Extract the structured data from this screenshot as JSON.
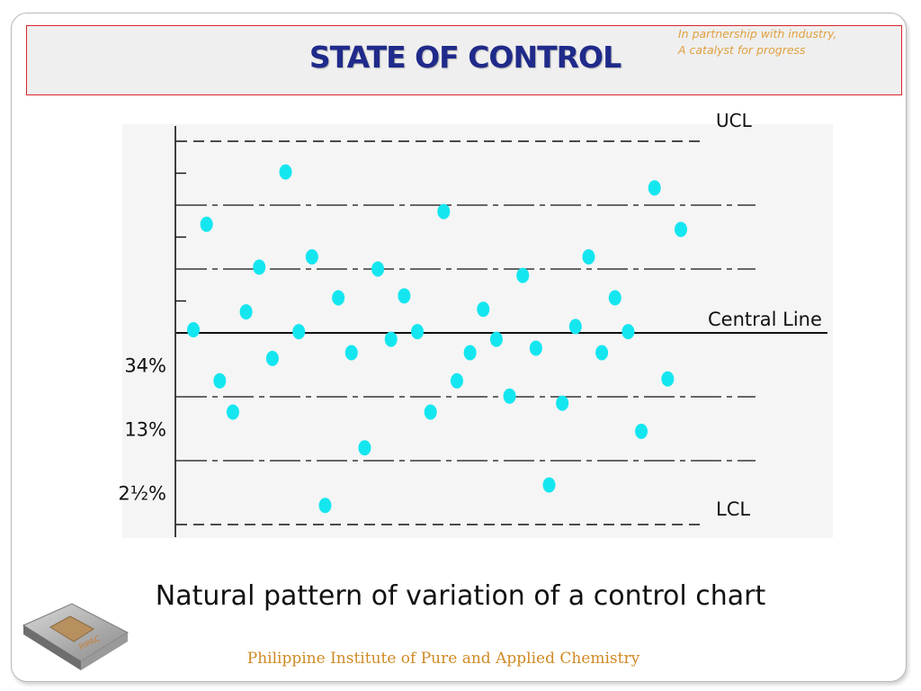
{
  "header": {
    "title": "STATE OF CONTROL",
    "tagline_line1": "In partnership with industry,",
    "tagline_line2": "A catalyst for progress"
  },
  "caption": "Natural pattern of variation of a control chart",
  "footer": "Philippine Institute of Pure and Applied Chemistry",
  "colors": {
    "point": "#14e6f0",
    "axis": "#111111",
    "title": "#1f2a8a",
    "footer": "#d08a24",
    "tagline": "#e0a040",
    "border": "#d9262b"
  },
  "logo": {
    "icon": "institute-logo-icon",
    "text": "PIPAC"
  },
  "chart_data": {
    "type": "scatter",
    "ylim": [
      -3,
      3
    ],
    "xlim": [
      0,
      50
    ],
    "grid": false,
    "center_label": "Central Line",
    "ucl_label": "UCL",
    "lcl_label": "LCL",
    "zone_labels": [
      {
        "y": -0.5,
        "text": "34%"
      },
      {
        "y": -1.5,
        "text": "13%"
      },
      {
        "y": -2.5,
        "text": "2½%"
      }
    ],
    "limits": [
      {
        "y": 3,
        "kind": "limit"
      },
      {
        "y": 2,
        "kind": "sigma"
      },
      {
        "y": 1,
        "kind": "sigma"
      },
      {
        "y": 0,
        "kind": "center"
      },
      {
        "y": -1,
        "kind": "sigma"
      },
      {
        "y": -2,
        "kind": "sigma"
      },
      {
        "y": -3,
        "kind": "limit"
      }
    ],
    "points": [
      {
        "x": 1,
        "y": 0.05
      },
      {
        "x": 2,
        "y": 1.7
      },
      {
        "x": 3,
        "y": -0.75
      },
      {
        "x": 4,
        "y": -1.24
      },
      {
        "x": 5,
        "y": 0.33
      },
      {
        "x": 6,
        "y": 1.03
      },
      {
        "x": 7,
        "y": -0.4
      },
      {
        "x": 8,
        "y": 2.52
      },
      {
        "x": 9,
        "y": 0.02
      },
      {
        "x": 10,
        "y": 1.19
      },
      {
        "x": 11,
        "y": -2.7
      },
      {
        "x": 12,
        "y": 0.55
      },
      {
        "x": 13,
        "y": -0.31
      },
      {
        "x": 14,
        "y": -1.8
      },
      {
        "x": 15,
        "y": 1.0
      },
      {
        "x": 16,
        "y": -0.1
      },
      {
        "x": 17,
        "y": 0.58
      },
      {
        "x": 18,
        "y": 0.02
      },
      {
        "x": 19,
        "y": -1.24
      },
      {
        "x": 20,
        "y": 1.9
      },
      {
        "x": 21,
        "y": -0.75
      },
      {
        "x": 22,
        "y": -0.31
      },
      {
        "x": 23,
        "y": 0.37
      },
      {
        "x": 24,
        "y": -0.1
      },
      {
        "x": 25,
        "y": -0.99
      },
      {
        "x": 26,
        "y": 0.9
      },
      {
        "x": 27,
        "y": -0.24
      },
      {
        "x": 28,
        "y": -2.38
      },
      {
        "x": 29,
        "y": -1.1
      },
      {
        "x": 30,
        "y": 0.1
      },
      {
        "x": 31,
        "y": 1.19
      },
      {
        "x": 32,
        "y": -0.31
      },
      {
        "x": 33,
        "y": 0.55
      },
      {
        "x": 34,
        "y": 0.02
      },
      {
        "x": 35,
        "y": -1.54
      },
      {
        "x": 36,
        "y": 2.27
      },
      {
        "x": 37,
        "y": -0.72
      },
      {
        "x": 38,
        "y": 1.62
      }
    ]
  }
}
